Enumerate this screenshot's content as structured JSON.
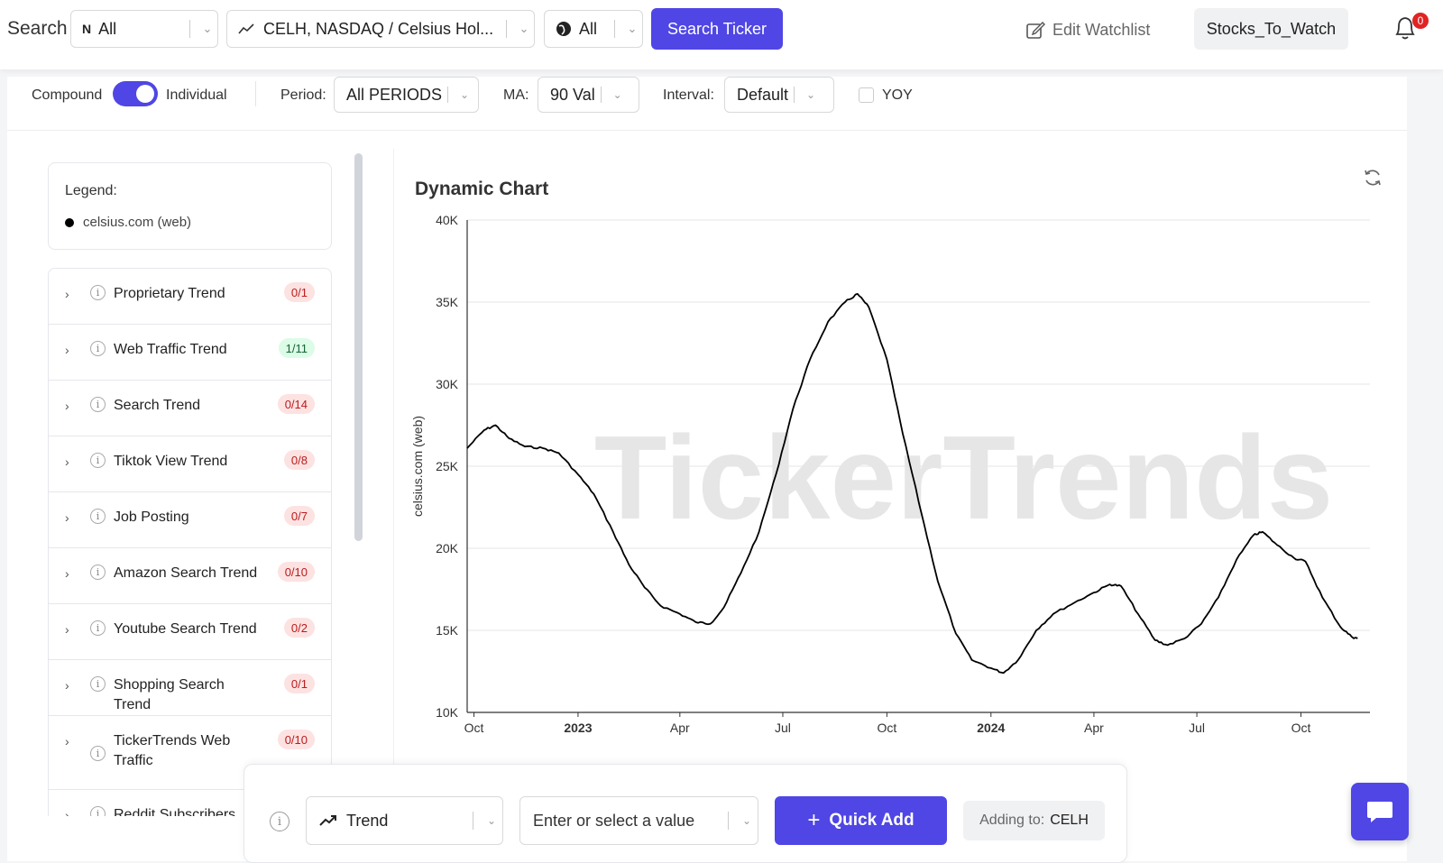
{
  "topbar": {
    "search_label": "Search",
    "market_select": "All",
    "ticker_select": "CELH, NASDAQ / Celsius Hol...",
    "region_select": "All",
    "search_button": "Search Ticker",
    "edit_watchlist": "Edit Watchlist",
    "watchlist_button": "Stocks_To_Watch",
    "notification_count": "0"
  },
  "controls": {
    "compound_label": "Compound",
    "individual_label": "Individual",
    "period_label": "Period:",
    "period_value": "All PERIODS",
    "ma_label": "MA:",
    "ma_value": "90 Val",
    "interval_label": "Interval:",
    "interval_value": "Default",
    "yoy_label": "YOY"
  },
  "legend": {
    "title": "Legend:",
    "item": "celsius.com (web)"
  },
  "trends": [
    {
      "label": "Proprietary Trend",
      "count": "0/1",
      "status": "red"
    },
    {
      "label": "Web Traffic Trend",
      "count": "1/11",
      "status": "green"
    },
    {
      "label": "Search Trend",
      "count": "0/14",
      "status": "red"
    },
    {
      "label": "Tiktok View Trend",
      "count": "0/8",
      "status": "red"
    },
    {
      "label": "Job Posting",
      "count": "0/7",
      "status": "red"
    },
    {
      "label": "Amazon Search Trend",
      "count": "0/10",
      "status": "red"
    },
    {
      "label": "Youtube Search Trend",
      "count": "0/2",
      "status": "red"
    },
    {
      "label": "Shopping Search Trend",
      "count": "0/1",
      "status": "red"
    },
    {
      "label": "TickerTrends Web Traffic",
      "count": "0/10",
      "status": "red"
    },
    {
      "label": "Reddit Subscribers",
      "count": "",
      "status": "red"
    }
  ],
  "chart": {
    "title": "Dynamic Chart",
    "watermark": "TickerTrends",
    "ylabel": "celsius.com  (web)"
  },
  "chart_data": {
    "type": "line",
    "title": "Dynamic Chart",
    "xlabel": "",
    "ylabel": "celsius.com  (web)",
    "ylim": [
      10000,
      40000
    ],
    "yticks": [
      {
        "value": 10000,
        "label": "10K"
      },
      {
        "value": 15000,
        "label": "15K"
      },
      {
        "value": 20000,
        "label": "20K"
      },
      {
        "value": 25000,
        "label": "25K"
      },
      {
        "value": 30000,
        "label": "30K"
      },
      {
        "value": 35000,
        "label": "35K"
      },
      {
        "value": 40000,
        "label": "40K"
      }
    ],
    "xlim": [
      "2022-09-25",
      "2024-12-01"
    ],
    "xticks": [
      {
        "value": "2022-10-01",
        "label": "Oct",
        "bold": false
      },
      {
        "value": "2023-01-01",
        "label": "2023",
        "bold": true
      },
      {
        "value": "2023-04-01",
        "label": "Apr",
        "bold": false
      },
      {
        "value": "2023-07-01",
        "label": "Jul",
        "bold": false
      },
      {
        "value": "2023-10-01",
        "label": "Oct",
        "bold": false
      },
      {
        "value": "2024-01-01",
        "label": "2024",
        "bold": true
      },
      {
        "value": "2024-04-01",
        "label": "Apr",
        "bold": false
      },
      {
        "value": "2024-07-01",
        "label": "Jul",
        "bold": false
      },
      {
        "value": "2024-10-01",
        "label": "Oct",
        "bold": false
      }
    ],
    "grid": true,
    "series": [
      {
        "name": "celsius.com (web)",
        "color": "#000000",
        "points": [
          [
            "2022-09-25",
            26100
          ],
          [
            "2022-10-10",
            27200
          ],
          [
            "2022-10-20",
            27500
          ],
          [
            "2022-11-01",
            26700
          ],
          [
            "2022-11-15",
            26200
          ],
          [
            "2022-12-01",
            26100
          ],
          [
            "2022-12-15",
            25800
          ],
          [
            "2023-01-01",
            24500
          ],
          [
            "2023-01-15",
            23300
          ],
          [
            "2023-02-01",
            21000
          ],
          [
            "2023-02-15",
            19000
          ],
          [
            "2023-03-01",
            17600
          ],
          [
            "2023-03-15",
            16500
          ],
          [
            "2023-04-01",
            16000
          ],
          [
            "2023-04-15",
            15500
          ],
          [
            "2023-04-28",
            15400
          ],
          [
            "2023-05-10",
            16400
          ],
          [
            "2023-05-25",
            18500
          ],
          [
            "2023-06-10",
            21000
          ],
          [
            "2023-06-25",
            24500
          ],
          [
            "2023-07-10",
            28500
          ],
          [
            "2023-07-25",
            31500
          ],
          [
            "2023-08-10",
            33800
          ],
          [
            "2023-08-25",
            35000
          ],
          [
            "2023-09-05",
            35500
          ],
          [
            "2023-09-15",
            34700
          ],
          [
            "2023-10-01",
            31500
          ],
          [
            "2023-10-15",
            27000
          ],
          [
            "2023-11-01",
            22000
          ],
          [
            "2023-11-15",
            18000
          ],
          [
            "2023-12-01",
            14800
          ],
          [
            "2023-12-15",
            13200
          ],
          [
            "2024-01-01",
            12700
          ],
          [
            "2024-01-12",
            12400
          ],
          [
            "2024-01-25",
            13200
          ],
          [
            "2024-02-10",
            15000
          ],
          [
            "2024-02-25",
            16000
          ],
          [
            "2024-03-15",
            16700
          ],
          [
            "2024-04-01",
            17300
          ],
          [
            "2024-04-15",
            17800
          ],
          [
            "2024-04-25",
            17700
          ],
          [
            "2024-05-10",
            16000
          ],
          [
            "2024-05-25",
            14400
          ],
          [
            "2024-06-05",
            14100
          ],
          [
            "2024-06-20",
            14500
          ],
          [
            "2024-07-05",
            15400
          ],
          [
            "2024-07-20",
            17000
          ],
          [
            "2024-08-05",
            19300
          ],
          [
            "2024-08-20",
            20800
          ],
          [
            "2024-08-28",
            21000
          ],
          [
            "2024-09-10",
            20200
          ],
          [
            "2024-09-25",
            19400
          ],
          [
            "2024-10-05",
            19200
          ],
          [
            "2024-10-20",
            17000
          ],
          [
            "2024-11-05",
            15200
          ],
          [
            "2024-11-15",
            14600
          ],
          [
            "2024-11-20",
            14500
          ]
        ]
      }
    ]
  },
  "quick_add": {
    "type_select": "Trend",
    "value_placeholder": "Enter or select a value",
    "button": "Quick Add",
    "adding_label": "Adding to:",
    "adding_ticker": "CELH"
  }
}
